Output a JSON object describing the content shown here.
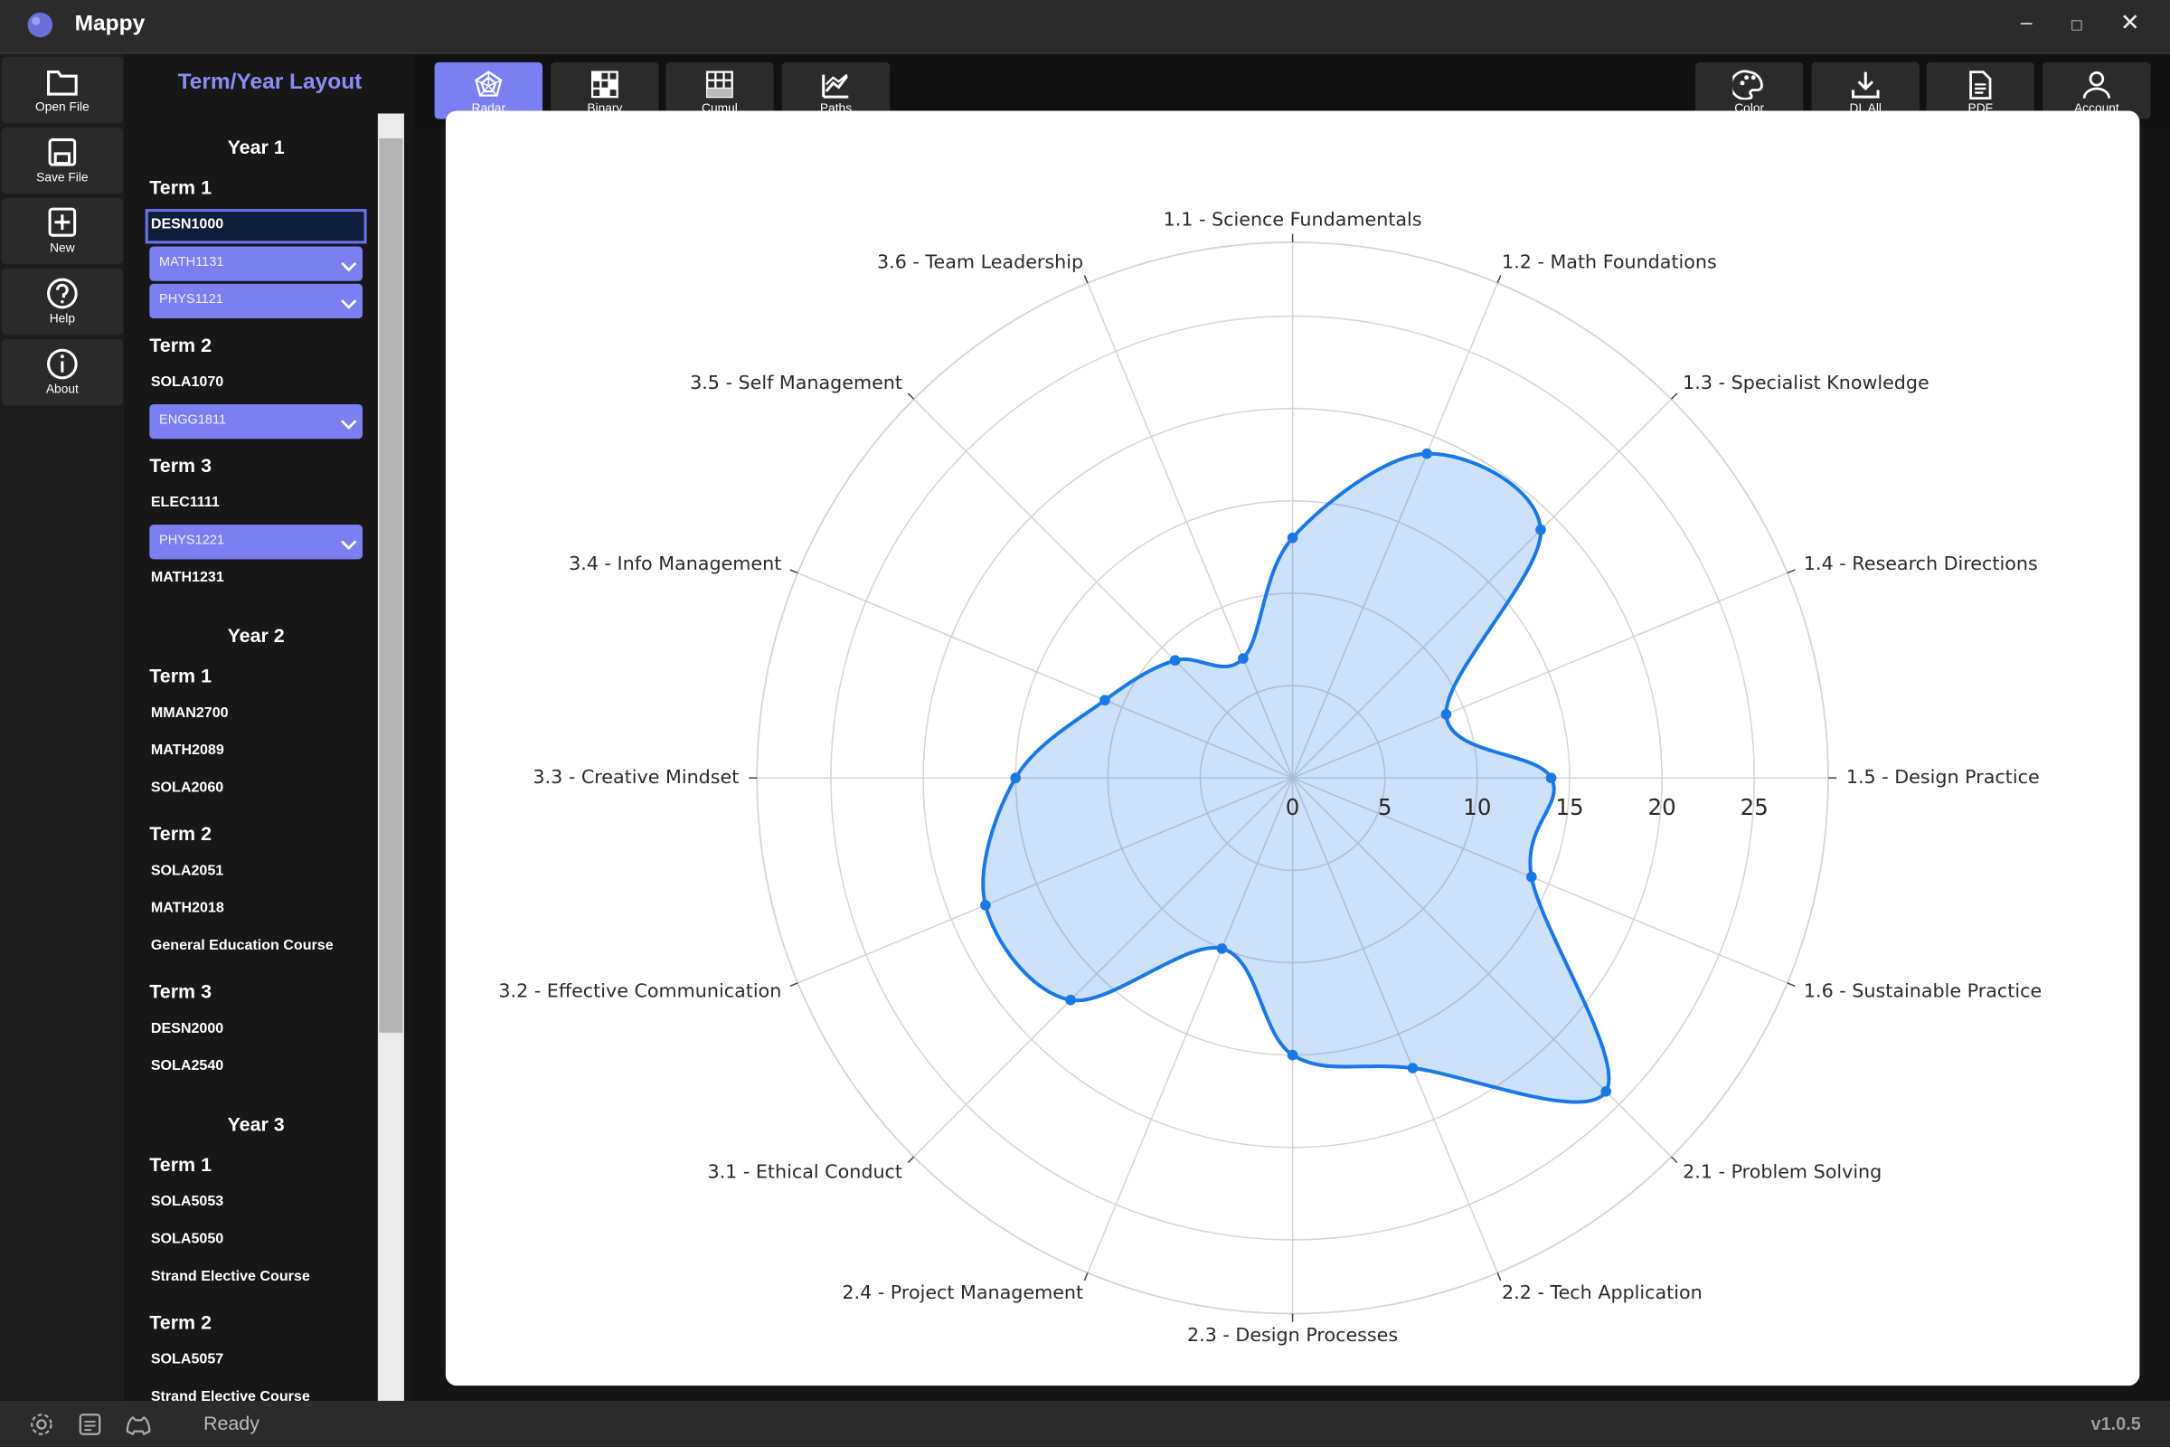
{
  "app": {
    "title": "Mappy",
    "status": "Ready",
    "version": "v1.0.5"
  },
  "toolbar": [
    "Open File",
    "Save File",
    "New",
    "Help",
    "About"
  ],
  "tabs": [
    "Radar",
    "Binary",
    "Cumul",
    "Paths"
  ],
  "actions": [
    "Color",
    "DL All",
    "PDF",
    "Account"
  ],
  "layout_panel": {
    "title": "Term/Year Layout",
    "years": [
      {
        "label": "Year 1",
        "terms": [
          {
            "label": "Term 1",
            "courses": [
              {
                "code": "DESN1000",
                "selected": true
              },
              {
                "code": "MATH1131",
                "dropdown": true
              },
              {
                "code": "PHYS1121",
                "dropdown": true
              }
            ]
          },
          {
            "label": "Term 2",
            "courses": [
              {
                "code": "SOLA1070"
              },
              {
                "code": "ENGG1811",
                "dropdown": true
              }
            ]
          },
          {
            "label": "Term 3",
            "courses": [
              {
                "code": "ELEC1111"
              },
              {
                "code": "PHYS1221",
                "dropdown": true
              },
              {
                "code": "MATH1231"
              }
            ]
          }
        ]
      },
      {
        "label": "Year 2",
        "terms": [
          {
            "label": "Term 1",
            "courses": [
              {
                "code": "MMAN2700"
              },
              {
                "code": "MATH2089"
              },
              {
                "code": "SOLA2060"
              }
            ]
          },
          {
            "label": "Term 2",
            "courses": [
              {
                "code": "SOLA2051"
              },
              {
                "code": "MATH2018"
              },
              {
                "code": "General Education Course"
              }
            ]
          },
          {
            "label": "Term 3",
            "courses": [
              {
                "code": "DESN2000"
              },
              {
                "code": "SOLA2540"
              }
            ]
          }
        ]
      },
      {
        "label": "Year 3",
        "terms": [
          {
            "label": "Term 1",
            "courses": [
              {
                "code": "SOLA5053"
              },
              {
                "code": "SOLA5050"
              },
              {
                "code": "Strand Elective Course"
              }
            ]
          },
          {
            "label": "Term 2",
            "courses": [
              {
                "code": "SOLA5057"
              },
              {
                "code": "Strand Elective Course"
              }
            ]
          }
        ]
      }
    ]
  },
  "chart_data": {
    "type": "radar",
    "categories": [
      "1.1 - Science Fundamentals",
      "1.2 - Math Foundations",
      "1.3 - Specialist Knowledge",
      "1.4 - Research Directions",
      "1.5 - Design Practice",
      "1.6 - Sustainable Practice",
      "2.1 - Problem Solving",
      "2.2 - Tech Application",
      "2.3 - Design Processes",
      "2.4 - Project Management",
      "3.1 - Ethical Conduct",
      "3.2 - Effective Communication",
      "3.3 - Creative Mindset",
      "3.4 - Info Management",
      "3.5 - Self Management",
      "3.6 - Team Leadership"
    ],
    "values": [
      13,
      19,
      19,
      9,
      14,
      14,
      24,
      17,
      15,
      10,
      17,
      18,
      15,
      11,
      9,
      7
    ],
    "color": "#1a78e6",
    "smooth": true,
    "rlim": [
      0,
      29
    ],
    "rticks": [
      0,
      5,
      10,
      15,
      20,
      25
    ],
    "grid": true
  }
}
